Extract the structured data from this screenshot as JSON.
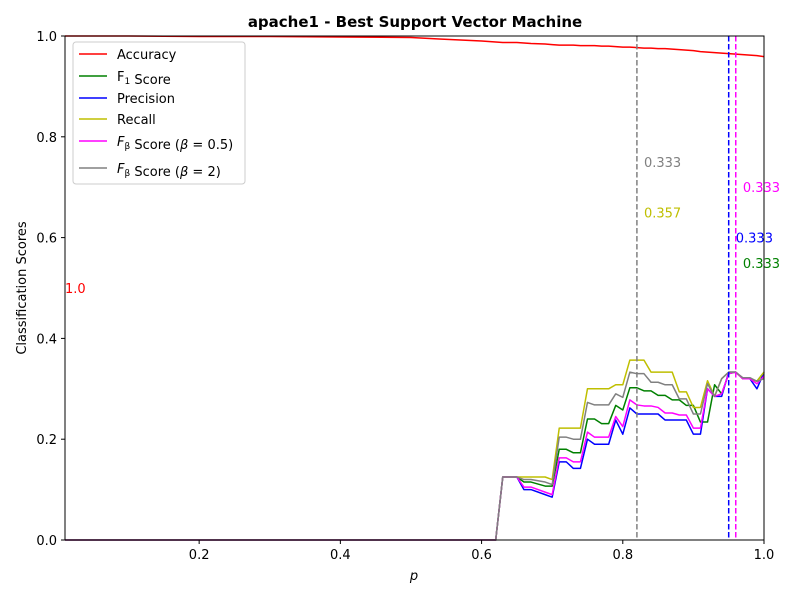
{
  "chart_data": {
    "type": "line",
    "title": "apache1 - Best Support Vector Machine",
    "xlabel": "p",
    "ylabel": "Classification Scores",
    "xlim": [
      0.01,
      1.0
    ],
    "ylim": [
      0.0,
      1.0
    ],
    "xticks": [
      0.2,
      0.4,
      0.6,
      0.8,
      1.0
    ],
    "xtick_labels": [
      "0.2",
      "0.4",
      "0.6",
      "0.8",
      "1.0"
    ],
    "yticks": [
      0.0,
      0.2,
      0.4,
      0.6,
      0.8,
      1.0
    ],
    "ytick_labels": [
      "0.0",
      "0.2",
      "0.4",
      "0.6",
      "0.8",
      "1.0"
    ],
    "grid": false,
    "legend_position": "top-left",
    "x": [
      0.01,
      0.1,
      0.2,
      0.3,
      0.4,
      0.5,
      0.54,
      0.6,
      0.62,
      0.63,
      0.65,
      0.66,
      0.67,
      0.69,
      0.7,
      0.71,
      0.72,
      0.73,
      0.74,
      0.75,
      0.76,
      0.77,
      0.78,
      0.79,
      0.8,
      0.81,
      0.82,
      0.83,
      0.84,
      0.85,
      0.86,
      0.87,
      0.88,
      0.89,
      0.9,
      0.91,
      0.92,
      0.93,
      0.94,
      0.95,
      0.96,
      0.97,
      0.98,
      0.99,
      1.0
    ],
    "series": [
      {
        "name": "Accuracy",
        "color": "#ff0000",
        "values": [
          1.0,
          1.0,
          0.999,
          0.999,
          0.998,
          0.997,
          0.994,
          0.99,
          0.988,
          0.987,
          0.987,
          0.986,
          0.985,
          0.984,
          0.983,
          0.982,
          0.982,
          0.982,
          0.981,
          0.981,
          0.981,
          0.98,
          0.98,
          0.979,
          0.978,
          0.978,
          0.977,
          0.976,
          0.976,
          0.975,
          0.975,
          0.974,
          0.973,
          0.972,
          0.971,
          0.969,
          0.968,
          0.967,
          0.966,
          0.965,
          0.964,
          0.963,
          0.962,
          0.961,
          0.959
        ]
      },
      {
        "name": "F_1 Score",
        "color": "#008000",
        "values": [
          0.0,
          0.0,
          0.0,
          0.0,
          0.0,
          0.0,
          0.0,
          0.0,
          0.0,
          0.125,
          0.125,
          0.115,
          0.115,
          0.107,
          0.107,
          0.18,
          0.18,
          0.173,
          0.173,
          0.24,
          0.24,
          0.231,
          0.231,
          0.267,
          0.258,
          0.302,
          0.302,
          0.296,
          0.296,
          0.287,
          0.287,
          0.278,
          0.278,
          0.267,
          0.267,
          0.234,
          0.234,
          0.308,
          0.29,
          0.33,
          0.333,
          0.32,
          0.32,
          0.315,
          0.333
        ]
      },
      {
        "name": "Precision",
        "color": "#0000ff",
        "values": [
          0.0,
          0.0,
          0.0,
          0.0,
          0.0,
          0.0,
          0.0,
          0.0,
          0.0,
          0.125,
          0.125,
          0.1,
          0.1,
          0.09,
          0.085,
          0.155,
          0.155,
          0.142,
          0.142,
          0.2,
          0.19,
          0.19,
          0.19,
          0.238,
          0.21,
          0.262,
          0.25,
          0.25,
          0.25,
          0.25,
          0.238,
          0.238,
          0.238,
          0.238,
          0.21,
          0.21,
          0.3,
          0.285,
          0.285,
          0.333,
          0.333,
          0.32,
          0.32,
          0.3,
          0.333
        ]
      },
      {
        "name": "Recall",
        "color": "#bfbf00",
        "values": [
          0.0,
          0.0,
          0.0,
          0.0,
          0.0,
          0.0,
          0.0,
          0.0,
          0.0,
          0.125,
          0.125,
          0.125,
          0.125,
          0.125,
          0.12,
          0.222,
          0.222,
          0.222,
          0.222,
          0.3,
          0.3,
          0.3,
          0.3,
          0.308,
          0.308,
          0.357,
          0.357,
          0.357,
          0.333,
          0.333,
          0.333,
          0.333,
          0.294,
          0.294,
          0.263,
          0.263,
          0.316,
          0.285,
          0.32,
          0.333,
          0.333,
          0.32,
          0.32,
          0.315,
          0.333
        ]
      },
      {
        "name": "F_beta Score (beta=0.5)",
        "color": "#ff00ff",
        "values": [
          0.0,
          0.0,
          0.0,
          0.0,
          0.0,
          0.0,
          0.0,
          0.0,
          0.0,
          0.125,
          0.125,
          0.105,
          0.105,
          0.095,
          0.09,
          0.163,
          0.163,
          0.155,
          0.155,
          0.214,
          0.204,
          0.204,
          0.204,
          0.245,
          0.225,
          0.278,
          0.268,
          0.266,
          0.266,
          0.263,
          0.252,
          0.252,
          0.248,
          0.248,
          0.222,
          0.222,
          0.3,
          0.285,
          0.29,
          0.33,
          0.333,
          0.32,
          0.32,
          0.31,
          0.325
        ]
      },
      {
        "name": "F_beta Score (beta=2)",
        "color": "#808080",
        "values": [
          0.0,
          0.0,
          0.0,
          0.0,
          0.0,
          0.0,
          0.0,
          0.0,
          0.0,
          0.125,
          0.125,
          0.12,
          0.12,
          0.115,
          0.11,
          0.204,
          0.204,
          0.2,
          0.2,
          0.273,
          0.268,
          0.268,
          0.268,
          0.29,
          0.283,
          0.333,
          0.33,
          0.33,
          0.313,
          0.313,
          0.308,
          0.308,
          0.28,
          0.28,
          0.25,
          0.25,
          0.31,
          0.285,
          0.32,
          0.333,
          0.333,
          0.322,
          0.322,
          0.315,
          0.32
        ]
      }
    ],
    "vlines": [
      {
        "x": 0.82,
        "color": "#808080",
        "style": "dashed"
      },
      {
        "x": 0.95,
        "color": "#0000ff",
        "style": "dashed"
      },
      {
        "x": 0.96,
        "color": "#ff00ff",
        "style": "dashed"
      }
    ],
    "annotations": [
      {
        "text": "1.0",
        "x": 0.01,
        "y": 0.5,
        "color": "#ff0000"
      },
      {
        "text": "0.333",
        "x": 0.83,
        "y": 0.75,
        "color": "#808080"
      },
      {
        "text": "0.357",
        "x": 0.83,
        "y": 0.65,
        "color": "#bfbf00"
      },
      {
        "text": "0.333",
        "x": 0.97,
        "y": 0.7,
        "color": "#ff00ff"
      },
      {
        "text": "0.333",
        "x": 0.96,
        "y": 0.6,
        "color": "#0000ff"
      },
      {
        "text": "0.333",
        "x": 0.97,
        "y": 0.55,
        "color": "#008000"
      }
    ],
    "legend": [
      {
        "text": "Accuracy",
        "color": "#ff0000"
      },
      {
        "text": "",
        "color": "#008000",
        "math": [
          [
            "F",
            ""
          ],
          [
            "1",
            "sub"
          ],
          [
            " Score",
            ""
          ]
        ]
      },
      {
        "text": "Precision",
        "color": "#0000ff"
      },
      {
        "text": "Recall",
        "color": "#bfbf00"
      },
      {
        "text": "",
        "color": "#ff00ff",
        "math": [
          [
            "F",
            "i"
          ],
          [
            "β",
            "sub"
          ],
          [
            " Score (",
            ""
          ],
          [
            "β",
            "i"
          ],
          [
            " = 0.5)",
            ""
          ]
        ]
      },
      {
        "text": "",
        "color": "#808080",
        "math": [
          [
            "F",
            "i"
          ],
          [
            "β",
            "sub"
          ],
          [
            " Score (",
            ""
          ],
          [
            "β",
            "i"
          ],
          [
            " = 2)",
            ""
          ]
        ]
      }
    ]
  }
}
